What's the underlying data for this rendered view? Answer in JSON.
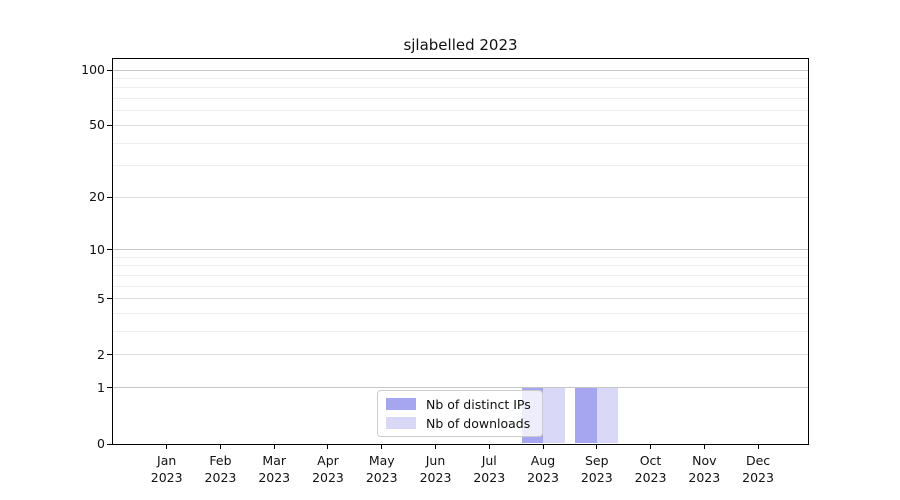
{
  "title": "sjlabelled 2023",
  "chart_data": {
    "type": "bar",
    "title": "sjlabelled 2023",
    "x_axis": {
      "categories": [
        {
          "month": "Jan",
          "year": "2023"
        },
        {
          "month": "Feb",
          "year": "2023"
        },
        {
          "month": "Mar",
          "year": "2023"
        },
        {
          "month": "Apr",
          "year": "2023"
        },
        {
          "month": "May",
          "year": "2023"
        },
        {
          "month": "Jun",
          "year": "2023"
        },
        {
          "month": "Jul",
          "year": "2023"
        },
        {
          "month": "Aug",
          "year": "2023"
        },
        {
          "month": "Sep",
          "year": "2023"
        },
        {
          "month": "Oct",
          "year": "2023"
        },
        {
          "month": "Nov",
          "year": "2023"
        },
        {
          "month": "Dec",
          "year": "2023"
        }
      ]
    },
    "y_axis": {
      "scale": "log1p",
      "tick_values": [
        0,
        1,
        2,
        5,
        10,
        20,
        50,
        100
      ],
      "decade_ticks": [
        1,
        10,
        100
      ],
      "minor_gridlines": [
        3,
        4,
        6,
        7,
        8,
        9,
        30,
        40,
        60,
        70,
        80,
        90
      ],
      "range": [
        0,
        115
      ]
    },
    "series": [
      {
        "name": "Nb of distinct IPs",
        "color": "#a6a6f0",
        "values": [
          0,
          0,
          0,
          0,
          0,
          0,
          0,
          1,
          1,
          0,
          0,
          0
        ]
      },
      {
        "name": "Nb of downloads",
        "color": "#d9d9f7",
        "values": [
          0,
          0,
          0,
          0,
          0,
          0,
          0,
          1,
          1,
          0,
          0,
          0
        ]
      }
    ],
    "legend": {
      "position": "lower center-right"
    },
    "grid": true,
    "colors": {
      "background": "#ffffff",
      "spine": "#000000",
      "grid_major": "#c6c6c6",
      "grid_mid": "#dedede",
      "grid_minor": "#efefef"
    }
  }
}
